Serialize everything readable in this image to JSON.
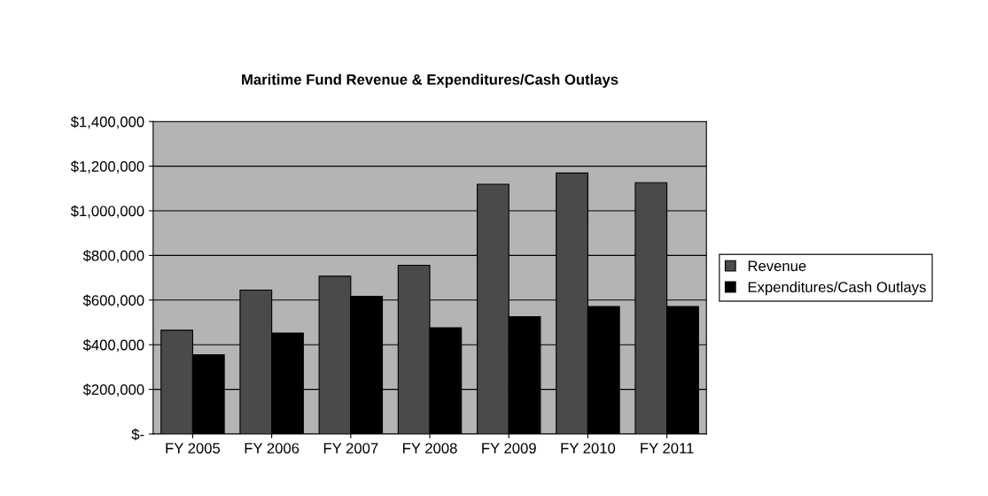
{
  "chart_data": {
    "type": "bar",
    "title": "Maritime Fund Revenue & Expenditures/Cash Outlays",
    "categories": [
      "FY 2005",
      "FY 2006",
      "FY 2007",
      "FY 2008",
      "FY 2009",
      "FY 2010",
      "FY 2011"
    ],
    "series": [
      {
        "name": "Revenue",
        "color": "#4a4a4a",
        "values": [
          465000,
          645000,
          707000,
          756000,
          1119000,
          1169000,
          1126000
        ]
      },
      {
        "name": "Expenditures/Cash Outlays",
        "color": "#000000",
        "values": [
          355000,
          452000,
          617000,
          476000,
          526000,
          571000,
          571000
        ]
      }
    ],
    "ylim": [
      0,
      1400000
    ],
    "yticks": [
      {
        "value": 0,
        "label": "$-"
      },
      {
        "value": 200000,
        "label": "$200,000"
      },
      {
        "value": 400000,
        "label": "$400,000"
      },
      {
        "value": 600000,
        "label": "$600,000"
      },
      {
        "value": 800000,
        "label": "$800,000"
      },
      {
        "value": 1000000,
        "label": "$1,000,000"
      },
      {
        "value": 1200000,
        "label": "$1,200,000"
      },
      {
        "value": 1400000,
        "label": "$1,400,000"
      }
    ],
    "grid": "y",
    "legend": "right"
  }
}
